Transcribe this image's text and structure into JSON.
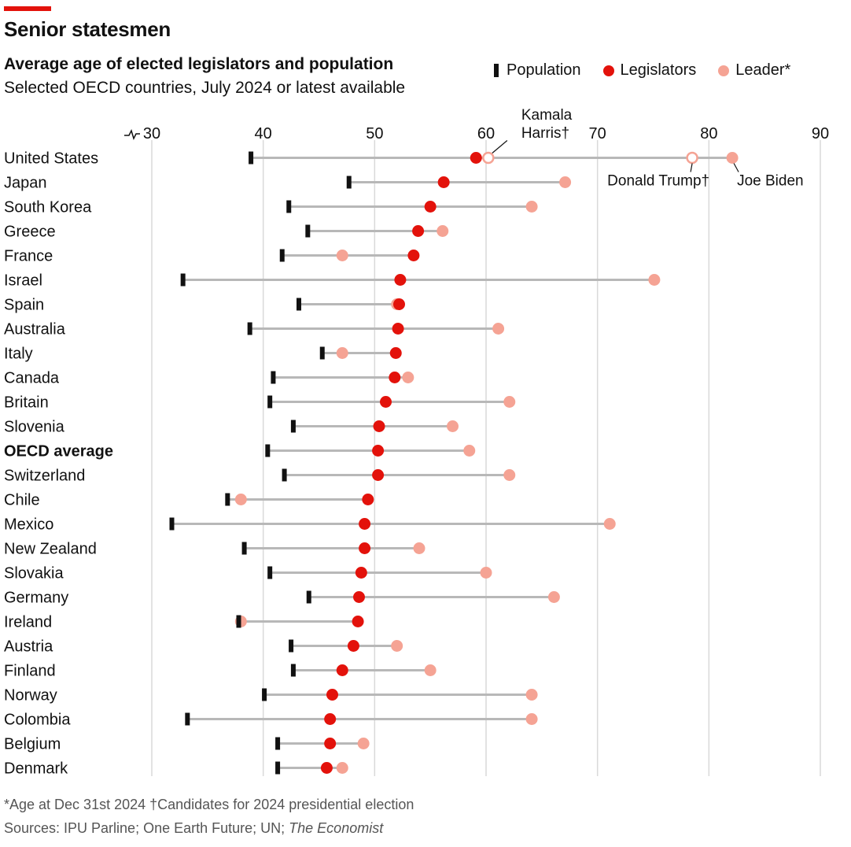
{
  "header": {
    "title": "Senior statesmen",
    "subtitle": "Average age of elected legislators and population",
    "subsubtitle": "Selected OECD countries, July 2024 or latest available"
  },
  "legend": {
    "population": "Population",
    "legislators": "Legislators",
    "leader": "Leader*"
  },
  "colors": {
    "population": "#111111",
    "legislators": "#e3120b",
    "leader": "#f5a394",
    "connector": "#b8b8b8",
    "grid": "#d9d9d9"
  },
  "footer": {
    "footnote": "*Age at Dec 31st 2024 †Candidates for 2024 presidential election",
    "sources_prefix": "Sources: IPU Parline; One Earth Future; UN; ",
    "sources_italic": "The Economist"
  },
  "chart_data": {
    "type": "dot-range",
    "x_range": [
      30,
      90
    ],
    "x_ticks": [
      30,
      40,
      50,
      60,
      70,
      80,
      90
    ],
    "axis_break": true,
    "grid": true,
    "legend_position": "top-right",
    "series": [
      {
        "key": "population",
        "name": "Population"
      },
      {
        "key": "legislators",
        "name": "Legislators"
      },
      {
        "key": "leader",
        "name": "Leader*"
      }
    ],
    "rows": [
      {
        "country": "United States",
        "population": 38.9,
        "legislators": 59.1,
        "leader": 82.1,
        "bold": false
      },
      {
        "country": "Japan",
        "population": 47.7,
        "legislators": 56.2,
        "leader": 67.1,
        "bold": false
      },
      {
        "country": "South Korea",
        "population": 42.3,
        "legislators": 55.0,
        "leader": 64.1,
        "bold": false
      },
      {
        "country": "Greece",
        "population": 44.0,
        "legislators": 53.9,
        "leader": 56.1,
        "bold": false
      },
      {
        "country": "France",
        "population": 41.7,
        "legislators": 53.5,
        "leader": 47.1,
        "bold": false
      },
      {
        "country": "Israel",
        "population": 32.8,
        "legislators": 52.3,
        "leader": 75.1,
        "bold": false
      },
      {
        "country": "Spain",
        "population": 43.2,
        "legislators": 52.2,
        "leader": 52.0,
        "bold": false
      },
      {
        "country": "Australia",
        "population": 38.8,
        "legislators": 52.1,
        "leader": 61.1,
        "bold": false
      },
      {
        "country": "Italy",
        "population": 45.3,
        "legislators": 51.9,
        "leader": 47.1,
        "bold": false
      },
      {
        "country": "Canada",
        "population": 40.9,
        "legislators": 51.8,
        "leader": 53.0,
        "bold": false
      },
      {
        "country": "Britain",
        "population": 40.6,
        "legislators": 51.0,
        "leader": 62.1,
        "bold": false
      },
      {
        "country": "Slovenia",
        "population": 42.7,
        "legislators": 50.4,
        "leader": 57.0,
        "bold": false
      },
      {
        "country": "OECD average",
        "population": 40.4,
        "legislators": 50.3,
        "leader": 58.5,
        "bold": true
      },
      {
        "country": "Switzerland",
        "population": 41.9,
        "legislators": 50.3,
        "leader": 62.1,
        "bold": false
      },
      {
        "country": "Chile",
        "population": 36.8,
        "legislators": 49.4,
        "leader": 38.0,
        "bold": false
      },
      {
        "country": "Mexico",
        "population": 31.8,
        "legislators": 49.1,
        "leader": 71.1,
        "bold": false
      },
      {
        "country": "New Zealand",
        "population": 38.3,
        "legislators": 49.1,
        "leader": 54.0,
        "bold": false
      },
      {
        "country": "Slovakia",
        "population": 40.6,
        "legislators": 48.8,
        "leader": 60.0,
        "bold": false
      },
      {
        "country": "Germany",
        "population": 44.1,
        "legislators": 48.6,
        "leader": 66.1,
        "bold": false
      },
      {
        "country": "Ireland",
        "population": 37.8,
        "legislators": 48.5,
        "leader": 38.0,
        "bold": false
      },
      {
        "country": "Austria",
        "population": 42.5,
        "legislators": 48.1,
        "leader": 52.0,
        "bold": false
      },
      {
        "country": "Finland",
        "population": 42.7,
        "legislators": 47.1,
        "leader": 55.0,
        "bold": false
      },
      {
        "country": "Norway",
        "population": 40.1,
        "legislators": 46.2,
        "leader": 64.1,
        "bold": false
      },
      {
        "country": "Colombia",
        "population": 33.2,
        "legislators": 46.0,
        "leader": 64.1,
        "bold": false
      },
      {
        "country": "Belgium",
        "population": 41.3,
        "legislators": 46.0,
        "leader": 49.0,
        "bold": false
      },
      {
        "country": "Denmark",
        "population": 41.3,
        "legislators": 45.7,
        "leader": 47.1,
        "bold": false
      }
    ],
    "candidates": [
      {
        "name": "Kamala",
        "name2": "Harris†",
        "age": 60.2,
        "row": 0,
        "label_side": "above"
      },
      {
        "name": "Donald Trump†",
        "age": 78.5,
        "row": 0,
        "label_side": "below"
      }
    ],
    "annotations": [
      {
        "text": "Joe Biden",
        "age": 82.1,
        "row": 0
      }
    ]
  }
}
